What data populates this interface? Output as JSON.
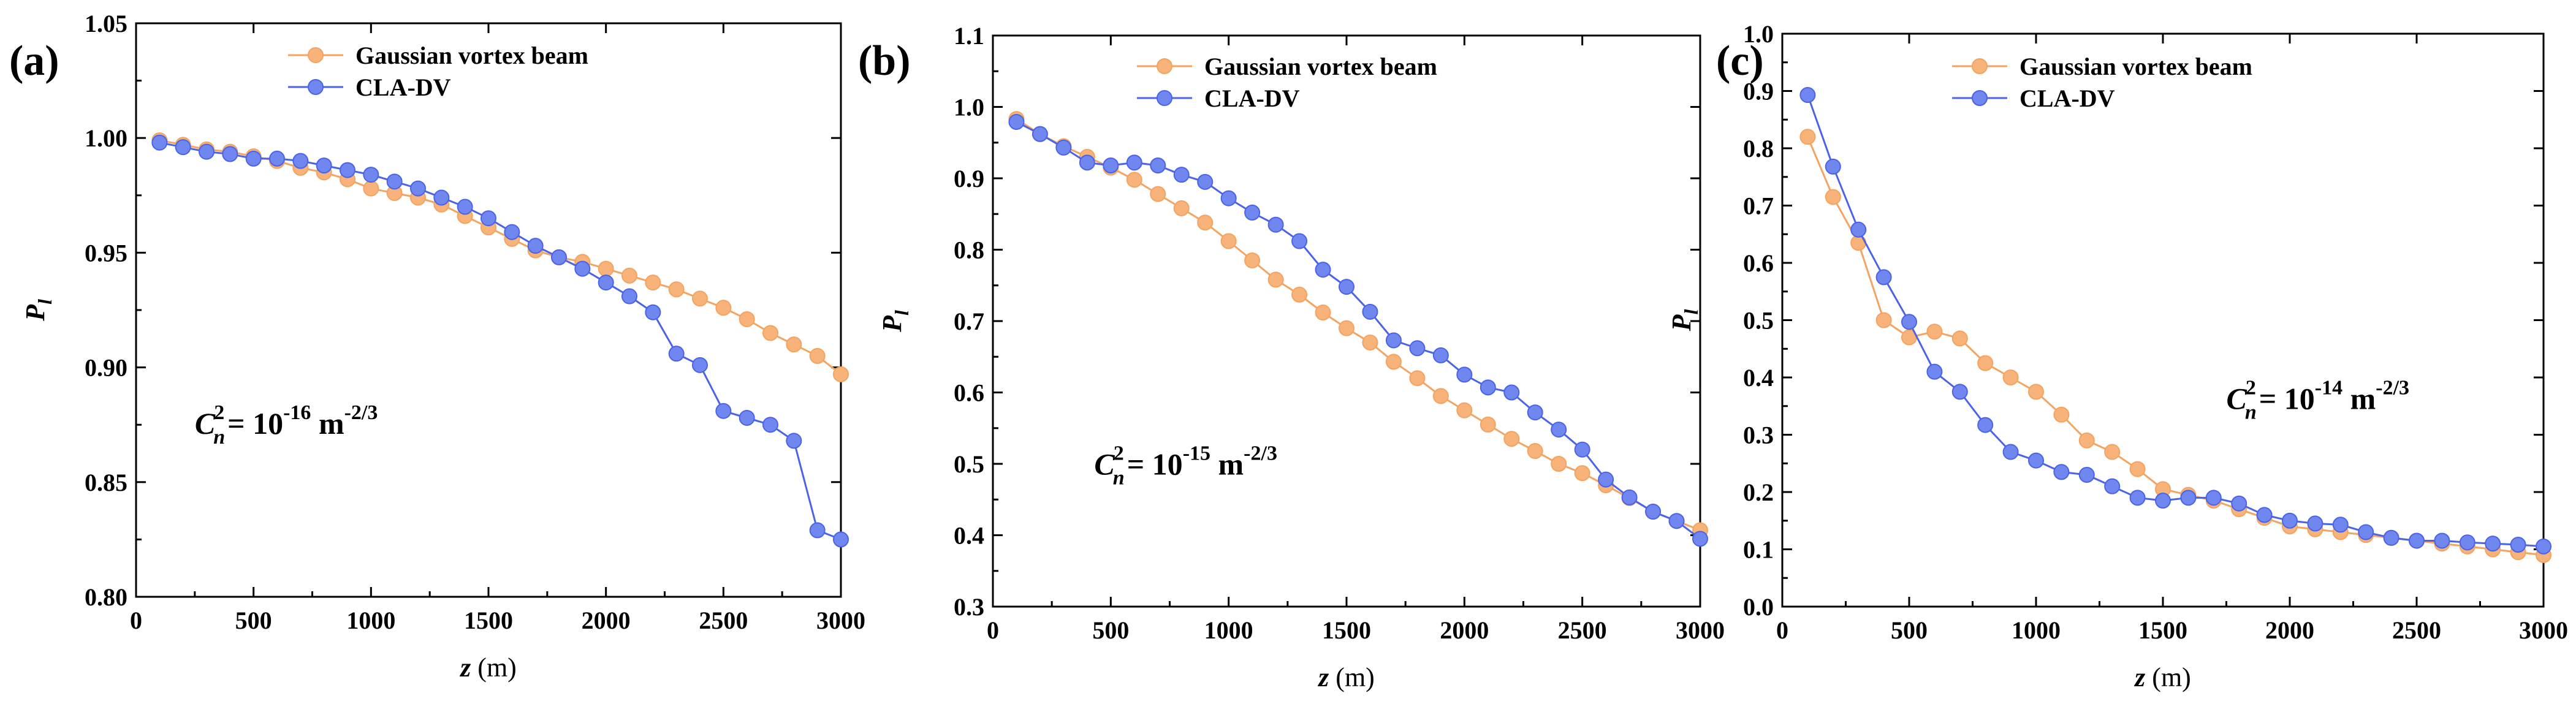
{
  "colors": {
    "gaussian": "#F4A460",
    "gaussian_marker": "#F7B37A",
    "cla": "#4A63E8",
    "cla_marker": "#7187F0",
    "axis": "#000000"
  },
  "chart_data": [
    {
      "type": "line",
      "panel_label": "(a)",
      "xlabel_var": "z",
      "xlabel_unit": " (m)",
      "ylabel_var": "P",
      "ylabel_sub": "l",
      "xlim": [
        0,
        3000
      ],
      "ylim": [
        0.8,
        1.05
      ],
      "xticks": [
        0,
        500,
        1000,
        1500,
        2000,
        2500,
        3000
      ],
      "xtick_labels": [
        "0",
        "500",
        "1000",
        "1500",
        "2000",
        "2500",
        "3000"
      ],
      "yticks": [
        0.8,
        0.85,
        0.9,
        0.95,
        1.0,
        1.05
      ],
      "ytick_labels": [
        "0.80",
        "0.85",
        "0.90",
        "0.95",
        "1.00",
        "1.05"
      ],
      "legend_position": "top-center",
      "annotation": {
        "lead": "C",
        "sup_n": "2",
        "sub_n": "n",
        "eq": "= 10",
        "exp": "-16",
        "unit": " m",
        "unit_exp": "-2/3",
        "anchor_x": 250,
        "anchor_y": 0.871
      },
      "x": [
        100,
        200,
        300,
        400,
        500,
        600,
        700,
        800,
        900,
        1000,
        1100,
        1200,
        1300,
        1400,
        1500,
        1600,
        1700,
        1800,
        1900,
        2000,
        2100,
        2200,
        2300,
        2400,
        2500,
        2600,
        2700,
        2800,
        2900,
        3000
      ],
      "series": [
        {
          "name": "Gaussian vortex beam",
          "color_key": "gaussian",
          "values": [
            0.999,
            0.997,
            0.995,
            0.994,
            0.992,
            0.99,
            0.987,
            0.985,
            0.982,
            0.978,
            0.976,
            0.974,
            0.971,
            0.966,
            0.961,
            0.956,
            0.951,
            0.948,
            0.946,
            0.943,
            0.94,
            0.937,
            0.934,
            0.93,
            0.926,
            0.921,
            0.915,
            0.91,
            0.905,
            0.897
          ]
        },
        {
          "name": "CLA-DV",
          "color_key": "cla",
          "values": [
            0.998,
            0.996,
            0.994,
            0.993,
            0.991,
            0.991,
            0.99,
            0.988,
            0.986,
            0.984,
            0.981,
            0.978,
            0.974,
            0.97,
            0.965,
            0.959,
            0.953,
            0.948,
            0.943,
            0.937,
            0.931,
            0.924,
            0.906,
            0.901,
            0.881,
            0.878,
            0.875,
            0.868,
            0.829,
            0.825
          ]
        }
      ]
    },
    {
      "type": "line",
      "panel_label": "(b)",
      "xlabel_var": "z",
      "xlabel_unit": " (m)",
      "ylabel_var": "P",
      "ylabel_sub": "l",
      "xlim": [
        0,
        3000
      ],
      "ylim": [
        0.3,
        1.1
      ],
      "xticks": [
        0,
        500,
        1000,
        1500,
        2000,
        2500,
        3000
      ],
      "xtick_labels": [
        "0",
        "500",
        "1000",
        "1500",
        "2000",
        "2500",
        "3000"
      ],
      "yticks": [
        0.3,
        0.4,
        0.5,
        0.6,
        0.7,
        0.8,
        0.9,
        1.0,
        1.1
      ],
      "ytick_labels": [
        "0.3",
        "0.4",
        "0.5",
        "0.6",
        "0.7",
        "0.8",
        "0.9",
        "1.0",
        "1.1"
      ],
      "legend_position": "top-center",
      "annotation": {
        "lead": "C",
        "sup_n": "2",
        "sub_n": "n",
        "eq": "= 10",
        "exp": "-15",
        "unit": " m",
        "unit_exp": "-2/3",
        "anchor_x": 430,
        "anchor_y": 0.485
      },
      "x": [
        100,
        200,
        300,
        400,
        500,
        600,
        700,
        800,
        900,
        1000,
        1100,
        1200,
        1300,
        1400,
        1500,
        1600,
        1700,
        1800,
        1900,
        2000,
        2100,
        2200,
        2300,
        2400,
        2500,
        2600,
        2700,
        2800,
        2900,
        3000
      ],
      "series": [
        {
          "name": "Gaussian vortex beam",
          "color_key": "gaussian",
          "values": [
            0.983,
            0.962,
            0.945,
            0.93,
            0.915,
            0.898,
            0.878,
            0.858,
            0.838,
            0.812,
            0.785,
            0.758,
            0.737,
            0.712,
            0.69,
            0.67,
            0.643,
            0.62,
            0.595,
            0.575,
            0.555,
            0.535,
            0.518,
            0.5,
            0.487,
            0.47,
            0.452,
            0.433,
            0.42,
            0.407
          ]
        },
        {
          "name": "CLA-DV",
          "color_key": "cla",
          "values": [
            0.979,
            0.962,
            0.943,
            0.922,
            0.918,
            0.922,
            0.918,
            0.905,
            0.895,
            0.872,
            0.852,
            0.835,
            0.812,
            0.772,
            0.748,
            0.713,
            0.673,
            0.662,
            0.652,
            0.625,
            0.607,
            0.6,
            0.572,
            0.548,
            0.52,
            0.478,
            0.453,
            0.433,
            0.42,
            0.395
          ]
        }
      ]
    },
    {
      "type": "line",
      "panel_label": "(c)",
      "xlabel_var": "z",
      "xlabel_unit": " (m)",
      "ylabel_var": "P",
      "ylabel_sub": "l",
      "xlim": [
        0,
        3000
      ],
      "ylim": [
        0.0,
        1.0
      ],
      "xticks": [
        0,
        500,
        1000,
        1500,
        2000,
        2500,
        3000
      ],
      "xtick_labels": [
        "0",
        "500",
        "1000",
        "1500",
        "2000",
        "2500",
        "3000"
      ],
      "yticks": [
        0.0,
        0.1,
        0.2,
        0.3,
        0.4,
        0.5,
        0.6,
        0.7,
        0.8,
        0.9,
        1.0
      ],
      "ytick_labels": [
        "0.0",
        "0.1",
        "0.2",
        "0.3",
        "0.4",
        "0.5",
        "0.6",
        "0.7",
        "0.8",
        "0.9",
        "1.0"
      ],
      "legend_position": "top-center",
      "annotation": {
        "lead": "C",
        "sup_n": "2",
        "sub_n": "n",
        "eq": "= 10",
        "exp": "-14",
        "unit": " m",
        "unit_exp": "-2/3",
        "anchor_x": 1750,
        "anchor_y": 0.345
      },
      "x": [
        100,
        200,
        300,
        400,
        500,
        600,
        700,
        800,
        900,
        1000,
        1100,
        1200,
        1300,
        1400,
        1500,
        1600,
        1700,
        1800,
        1900,
        2000,
        2100,
        2200,
        2300,
        2400,
        2500,
        2600,
        2700,
        2800,
        2900,
        3000
      ],
      "series": [
        {
          "name": "Gaussian vortex beam",
          "color_key": "gaussian",
          "values": [
            0.82,
            0.715,
            0.635,
            0.5,
            0.47,
            0.48,
            0.468,
            0.425,
            0.4,
            0.375,
            0.335,
            0.29,
            0.27,
            0.24,
            0.205,
            0.195,
            0.185,
            0.17,
            0.155,
            0.14,
            0.135,
            0.13,
            0.125,
            0.12,
            0.115,
            0.11,
            0.105,
            0.1,
            0.095,
            0.09
          ]
        },
        {
          "name": "CLA-DV",
          "color_key": "cla",
          "values": [
            0.893,
            0.768,
            0.658,
            0.575,
            0.497,
            0.41,
            0.375,
            0.317,
            0.27,
            0.255,
            0.235,
            0.23,
            0.21,
            0.19,
            0.185,
            0.19,
            0.19,
            0.18,
            0.16,
            0.15,
            0.145,
            0.143,
            0.13,
            0.12,
            0.115,
            0.115,
            0.112,
            0.11,
            0.108,
            0.105
          ]
        }
      ]
    }
  ]
}
